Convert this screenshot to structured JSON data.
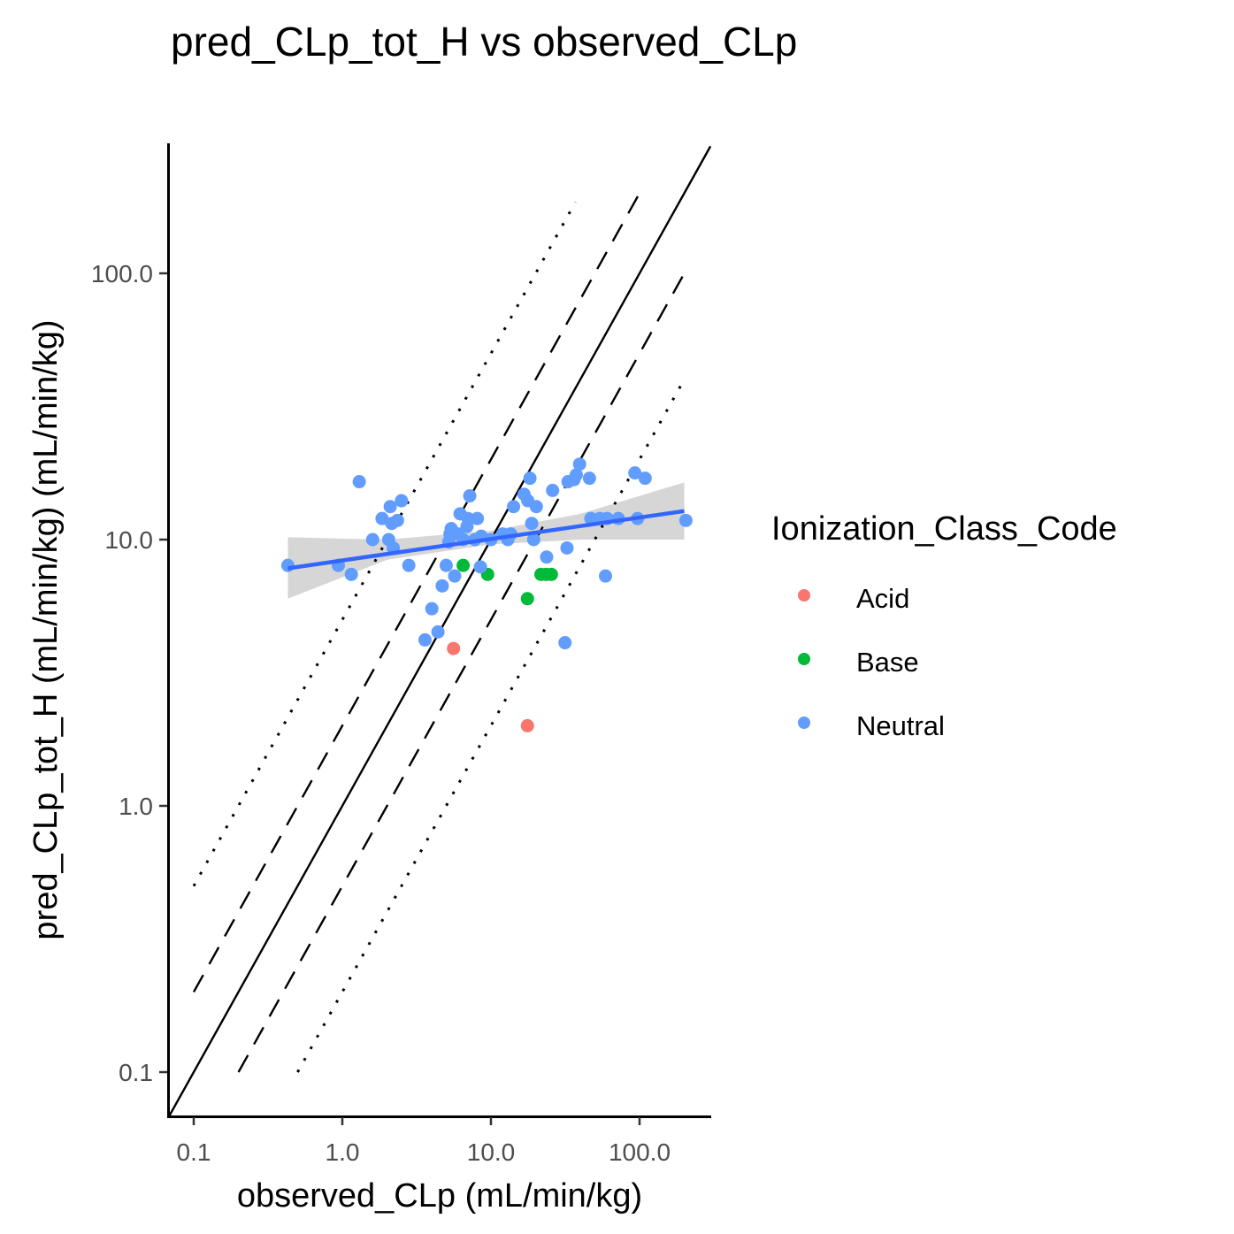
{
  "chart_data": {
    "type": "scatter",
    "title": "pred_CLp_tot_H vs observed_CLp",
    "xlabel": "observed_CLp (mL/min/kg)",
    "ylabel": "pred_CLp_tot_H (mL/min/kg) (mL/min/kg)",
    "x_scale": "log10",
    "y_scale": "log10",
    "xlim": [
      0.068,
      300
    ],
    "ylim": [
      0.068,
      300
    ],
    "x_ticks": [
      0.1,
      1,
      10,
      100
    ],
    "x_tick_labels": [
      "0.1",
      "1.0",
      "10.0",
      "100.0"
    ],
    "y_ticks": [
      0.1,
      1,
      10,
      100
    ],
    "y_tick_labels": [
      "0.1",
      "1.0",
      "10.0",
      "100.0"
    ],
    "grid": false,
    "legend": {
      "title": "Ionization_Class_Code",
      "position": "right",
      "entries": [
        {
          "label": "Acid",
          "color": "#F8766D"
        },
        {
          "label": "Base",
          "color": "#00BA38"
        },
        {
          "label": "Neutral",
          "color": "#619CFF"
        }
      ]
    },
    "reference_lines": [
      {
        "name": "identity",
        "style": "solid",
        "x": [
          0.068,
          300
        ],
        "y": [
          0.068,
          300
        ]
      },
      {
        "name": "2-fold upper",
        "style": "dashed",
        "x": [
          0.1,
          100
        ],
        "y": [
          0.2,
          200
        ]
      },
      {
        "name": "2-fold lower",
        "style": "dashed",
        "x": [
          0.2,
          200
        ],
        "y": [
          0.1,
          100
        ]
      },
      {
        "name": "5-fold upper",
        "style": "dotted",
        "x": [
          0.1,
          37
        ],
        "y": [
          0.5,
          185
        ]
      },
      {
        "name": "5-fold lower",
        "style": "dotted",
        "x": [
          0.5,
          200
        ],
        "y": [
          0.1,
          40
        ]
      }
    ],
    "fit": {
      "line": {
        "x": [
          0.43,
          200
        ],
        "y": [
          7.8,
          12.8
        ]
      },
      "band": {
        "x": [
          0.43,
          2,
          10,
          40,
          200
        ],
        "upper": [
          10.2,
          10.0,
          10.8,
          12.5,
          16.4
        ],
        "lower": [
          6.0,
          8.4,
          9.6,
          10.0,
          10.0
        ]
      },
      "color": "#3366FF",
      "band_color": "#cccccc"
    },
    "series": [
      {
        "name": "Acid",
        "color": "#F8766D",
        "points": [
          [
            5.6,
            3.9
          ],
          [
            17.6,
            2.0
          ]
        ]
      },
      {
        "name": "Base",
        "color": "#00BA38",
        "points": [
          [
            6.5,
            8.0
          ],
          [
            9.5,
            7.4
          ],
          [
            17.6,
            6.0
          ],
          [
            21.7,
            7.4
          ],
          [
            23.5,
            7.4
          ],
          [
            25.5,
            7.4
          ]
        ]
      },
      {
        "name": "Neutral",
        "color": "#619CFF",
        "points": [
          [
            0.43,
            8.0
          ],
          [
            0.94,
            8.0
          ],
          [
            1.15,
            7.4
          ],
          [
            1.3,
            16.5
          ],
          [
            1.6,
            10.0
          ],
          [
            1.85,
            12.0
          ],
          [
            2.05,
            10.0
          ],
          [
            2.1,
            13.3
          ],
          [
            2.15,
            11.5
          ],
          [
            2.2,
            9.3
          ],
          [
            2.35,
            11.8
          ],
          [
            2.5,
            14.0
          ],
          [
            2.8,
            8.0
          ],
          [
            3.6,
            4.2
          ],
          [
            4.0,
            5.5
          ],
          [
            4.4,
            4.5
          ],
          [
            4.7,
            6.7
          ],
          [
            5.0,
            8.0
          ],
          [
            5.2,
            9.8
          ],
          [
            5.3,
            10.5
          ],
          [
            5.4,
            11.0
          ],
          [
            5.7,
            7.3
          ],
          [
            6.0,
            10.5
          ],
          [
            6.2,
            12.5
          ],
          [
            6.5,
            10.0
          ],
          [
            6.9,
            11.2
          ],
          [
            7.0,
            12.0
          ],
          [
            7.2,
            14.6
          ],
          [
            7.8,
            10.0
          ],
          [
            8.1,
            12.0
          ],
          [
            8.5,
            7.9
          ],
          [
            8.6,
            10.3
          ],
          [
            10.0,
            10.0
          ],
          [
            12.0,
            10.5
          ],
          [
            13.0,
            10.0
          ],
          [
            13.6,
            10.5
          ],
          [
            14.2,
            13.3
          ],
          [
            16.7,
            14.8
          ],
          [
            17.7,
            14.0
          ],
          [
            18.3,
            17.0
          ],
          [
            18.8,
            11.5
          ],
          [
            19.4,
            10.0
          ],
          [
            20.2,
            13.3
          ],
          [
            23.7,
            8.6
          ],
          [
            26.0,
            15.3
          ],
          [
            31.5,
            4.1
          ],
          [
            32.5,
            9.3
          ],
          [
            33.0,
            16.5
          ],
          [
            36.2,
            16.8
          ],
          [
            37.5,
            17.5
          ],
          [
            39.5,
            19.2
          ],
          [
            46.0,
            17.0
          ],
          [
            47.0,
            12.0
          ],
          [
            54.0,
            12.0
          ],
          [
            59.0,
            7.3
          ],
          [
            60.5,
            12.0
          ],
          [
            72.0,
            12.0
          ],
          [
            93.0,
            17.8
          ],
          [
            97.0,
            12.0
          ],
          [
            109.0,
            17.0
          ],
          [
            205.0,
            11.8
          ]
        ]
      }
    ]
  }
}
